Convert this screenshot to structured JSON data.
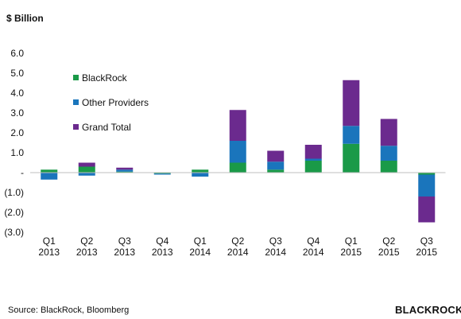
{
  "unit_label": "$ Billion",
  "source_note": "Source: BlackRock, Bloomberg",
  "logo_text": "BLACKROCK",
  "chart_data": {
    "type": "bar",
    "stacked": true,
    "categories": [
      [
        "Q1",
        "2013"
      ],
      [
        "Q2",
        "2013"
      ],
      [
        "Q3",
        "2013"
      ],
      [
        "Q4",
        "2013"
      ],
      [
        "Q1",
        "2014"
      ],
      [
        "Q2",
        "2014"
      ],
      [
        "Q3",
        "2014"
      ],
      [
        "Q4",
        "2014"
      ],
      [
        "Q1",
        "2015"
      ],
      [
        "Q2",
        "2015"
      ],
      [
        "Q3",
        "2015"
      ]
    ],
    "series": [
      {
        "name": "BlackRock",
        "color": "#1a9a48",
        "values": [
          0.15,
          0.3,
          0.05,
          -0.05,
          0.15,
          0.5,
          0.15,
          0.6,
          1.45,
          0.6,
          -0.1
        ]
      },
      {
        "name": "Other Providers",
        "color": "#1a75bc",
        "values": [
          -0.35,
          -0.15,
          0.1,
          -0.05,
          -0.2,
          1.1,
          0.4,
          0.1,
          0.9,
          0.75,
          -1.1
        ]
      },
      {
        "name": "Grand Total",
        "color": "#6b2a8e",
        "values": [
          0.0,
          0.2,
          0.1,
          0.0,
          0.0,
          1.55,
          0.55,
          0.7,
          2.3,
          1.35,
          -1.3
        ]
      }
    ],
    "yticks": [
      "6.0",
      "5.0",
      "4.0",
      "3.0",
      "2.0",
      "1.0",
      "-",
      "(1.0)",
      "(2.0)",
      "(3.0)"
    ],
    "ylim": [
      -3,
      6
    ],
    "legend_position": "top-left",
    "grid": false
  }
}
